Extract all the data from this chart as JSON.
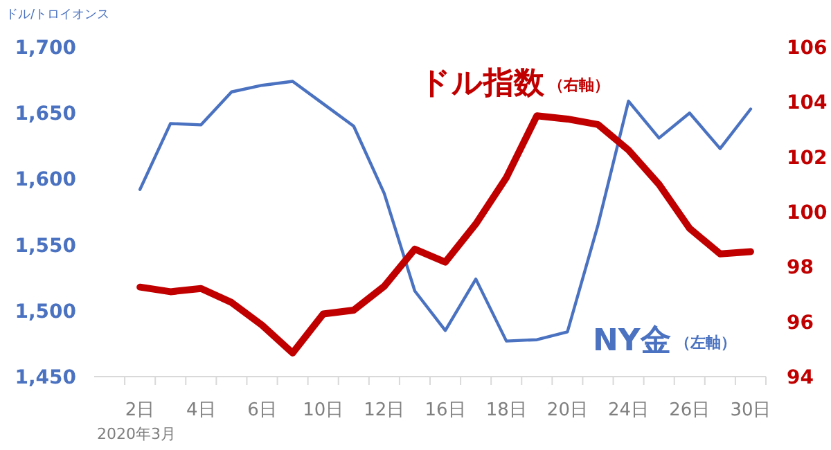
{
  "chart_data": {
    "type": "line",
    "ylabel": "ドル/トロイオンス",
    "xlabel": "2020年3月",
    "categories": [
      "2日",
      null,
      "4日",
      null,
      "6日",
      null,
      "10日",
      null,
      "12日",
      null,
      "16日",
      null,
      "18日",
      null,
      "20日",
      null,
      "24日",
      null,
      "26日",
      null,
      "30日"
    ],
    "series": [
      {
        "name": "NY金",
        "color": "#4a72c0",
        "axis": "y",
        "values": [
          1592,
          1642,
          1641,
          1666,
          1671,
          1674,
          1657,
          1640,
          1589,
          1515,
          1485,
          1524,
          1477,
          1478,
          1484,
          1565,
          1659,
          1631,
          1650,
          1623,
          1653
        ]
      },
      {
        "name": "ドル指数",
        "color": "#c00000",
        "axis": "y2",
        "values": [
          97.26,
          97.09,
          97.21,
          96.7,
          95.87,
          94.86,
          96.28,
          96.42,
          97.29,
          98.64,
          98.17,
          99.56,
          101.25,
          103.5,
          103.38,
          103.18,
          102.25,
          101.0,
          99.4,
          98.47,
          98.55
        ]
      }
    ],
    "annotations": [
      "（左軸）",
      "（右軸）"
    ],
    "ylim": [
      1450,
      1700
    ],
    "yticks": [
      {
        "value": 1450,
        "label": "1,450"
      },
      {
        "value": 1500,
        "label": "1,500"
      },
      {
        "value": 1550,
        "label": "1,550"
      },
      {
        "value": 1600,
        "label": "1,600"
      },
      {
        "value": 1650,
        "label": "1,650"
      },
      {
        "value": 1700,
        "label": "1,700"
      }
    ],
    "y2lim": [
      94,
      106
    ],
    "y2ticks": [
      94,
      96,
      98,
      100,
      102,
      104,
      106
    ]
  }
}
